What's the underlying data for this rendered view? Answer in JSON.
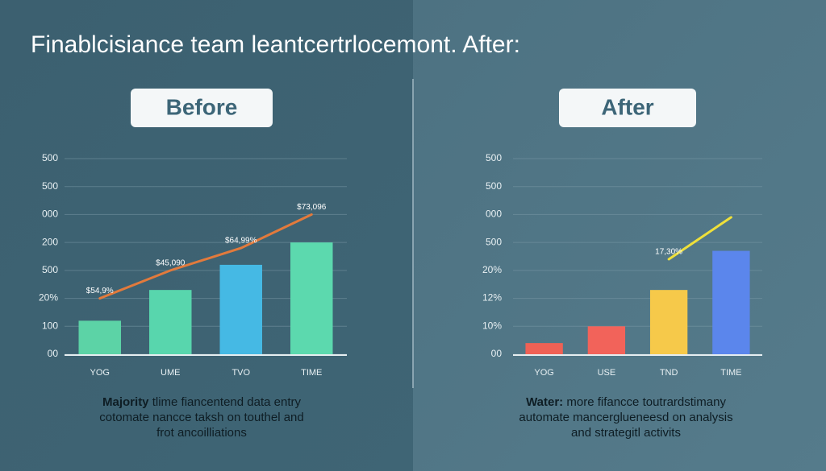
{
  "title": "Finablcisiance team leantcertrlocemont. After:",
  "chart_data": [
    {
      "type": "bar",
      "badge": "Before",
      "categories": [
        "YOG",
        "UME",
        "TVO",
        "TIME"
      ],
      "series": [
        {
          "type": "bar",
          "values": [
            1.2,
            2.3,
            3.2,
            4.0
          ],
          "colors": [
            "#5cd3a6",
            "#58d6ad",
            "#45b9e4",
            "#5cd9ae"
          ]
        },
        {
          "type": "line",
          "values": [
            2.0,
            3.0,
            3.8,
            5.0
          ],
          "color": "#e27a3c",
          "point_labels": [
            "$54,9%",
            "$45,090",
            "$64,99%",
            "$73,096"
          ]
        }
      ],
      "ylim": [
        0,
        7
      ],
      "yticks": [
        {
          "value": 0,
          "label": "00"
        },
        {
          "value": 1,
          "label": "100"
        },
        {
          "value": 2,
          "label": "20%"
        },
        {
          "value": 3,
          "label": "500"
        },
        {
          "value": 4,
          "label": "200"
        },
        {
          "value": 5,
          "label": "000"
        },
        {
          "value": 6,
          "label": "500"
        },
        {
          "value": 7,
          "label": "500"
        }
      ],
      "grid": true,
      "caption": {
        "lead": "Majority",
        "lines": [
          "tlime fiancentend data entry",
          "cotomate nancce taksh on touthel and",
          "frot ancoilliations"
        ]
      }
    },
    {
      "type": "bar",
      "badge": "After",
      "categories": [
        "YOG",
        "USE",
        "TND",
        "TIME"
      ],
      "series": [
        {
          "type": "bar",
          "values": [
            0.4,
            1.0,
            2.3,
            3.7
          ],
          "colors": [
            "#ef6155",
            "#f2635a",
            "#f6c94a",
            "#5b86ec"
          ]
        },
        {
          "type": "line",
          "values": [
            null,
            null,
            3.4,
            4.9
          ],
          "color": "#eee03a",
          "point_labels": [
            null,
            null,
            "17,30%",
            null
          ]
        }
      ],
      "ylim": [
        0,
        7
      ],
      "yticks": [
        {
          "value": 0,
          "label": "00"
        },
        {
          "value": 1,
          "label": "10%"
        },
        {
          "value": 2,
          "label": "12%"
        },
        {
          "value": 3,
          "label": "20%"
        },
        {
          "value": 4,
          "label": "500"
        },
        {
          "value": 5,
          "label": "000"
        },
        {
          "value": 6,
          "label": "500"
        },
        {
          "value": 7,
          "label": "500"
        }
      ],
      "grid": true,
      "caption": {
        "lead": "Water:",
        "lines": [
          "more fifancce toutrardstimany",
          "automate mancerglueneesd on analysis",
          "and strategitl activits"
        ]
      }
    }
  ]
}
